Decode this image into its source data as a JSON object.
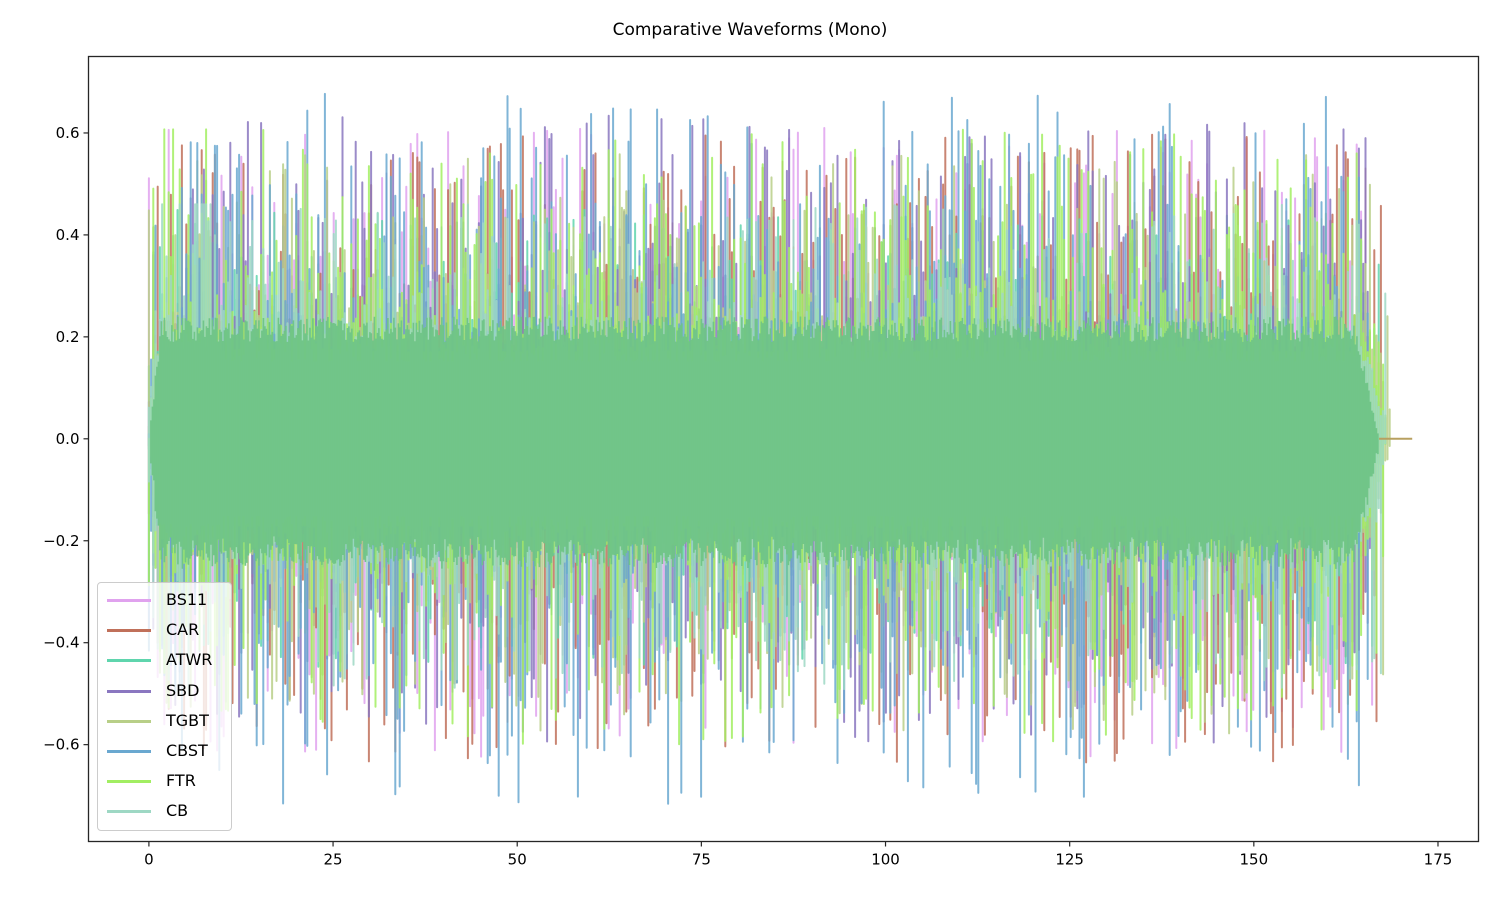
{
  "chart_data": {
    "type": "line",
    "title": "Comparative Waveforms (Mono)",
    "xlabel": "",
    "ylabel": "",
    "xlim": [
      -8.2,
      180.5
    ],
    "ylim": [
      -0.79,
      0.75
    ],
    "xticks": [
      0,
      25,
      50,
      75,
      100,
      125,
      150,
      175
    ],
    "xtick_labels": [
      "0",
      "25",
      "50",
      "75",
      "100",
      "125",
      "150",
      "175"
    ],
    "yticks": [
      -0.6,
      -0.4,
      -0.2,
      0.0,
      0.2,
      0.4,
      0.6
    ],
    "ytick_labels": [
      "−0.6",
      "−0.4",
      "−0.2",
      "0.0",
      "0.2",
      "0.4",
      "0.6"
    ],
    "grid": false,
    "legend_position": "lower left",
    "description": "Overlaid mono audio waveforms (amplitude vs. time in seconds) for eight tracks, drawn with alpha transparency; dense central band roughly ±0.2 with peaks up to about ±0.7.",
    "series": [
      {
        "name": "BS11",
        "color": "#e0a2ee",
        "duration": 166.5,
        "envelope": 0.16,
        "peak_max": 0.616,
        "peak_min": -0.63,
        "seed": 11
      },
      {
        "name": "CAR",
        "color": "#c0705a",
        "duration": 167.5,
        "envelope": 0.16,
        "peak_max": 0.6,
        "peak_min": -0.638,
        "seed": 23
      },
      {
        "name": "ATWR",
        "color": "#5fd5ad",
        "duration": 167.0,
        "envelope": 0.15,
        "peak_max": 0.45,
        "peak_min": -0.45,
        "seed": 37
      },
      {
        "name": "SBD",
        "color": "#8a77c0",
        "duration": 166.0,
        "envelope": 0.16,
        "peak_max": 0.635,
        "peak_min": -0.6,
        "seed": 41
      },
      {
        "name": "TGBT",
        "color": "#b8cf88",
        "duration": 168.5,
        "envelope": 0.16,
        "peak_max": 0.56,
        "peak_min": -0.58,
        "seed": 53
      },
      {
        "name": "CBST",
        "color": "#6aa8d0",
        "duration": 165.5,
        "envelope": 0.17,
        "peak_max": 0.68,
        "peak_min": -0.718,
        "seed": 67
      },
      {
        "name": "FTR",
        "color": "#a2ee62",
        "duration": 168.0,
        "envelope": 0.17,
        "peak_max": 0.607,
        "peak_min": -0.6,
        "seed": 71
      },
      {
        "name": "CB",
        "color": "#9ed8c4",
        "duration": 168.0,
        "envelope": 0.15,
        "peak_max": 0.46,
        "peak_min": -0.5,
        "seed": 83
      }
    ],
    "center_band_color": "#6fc486",
    "tail_end_x": 171.5
  }
}
